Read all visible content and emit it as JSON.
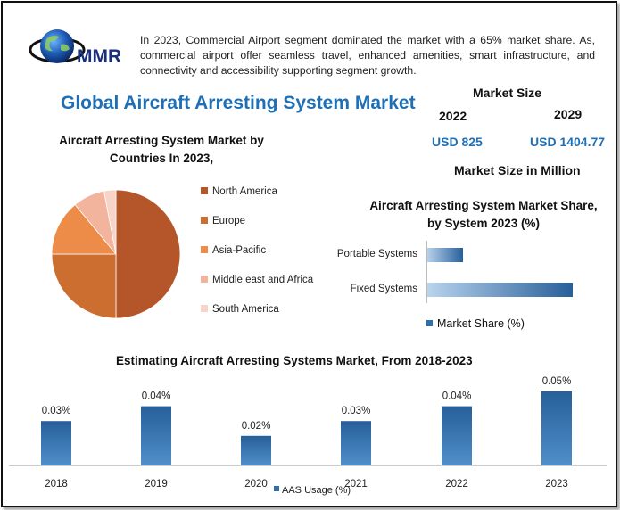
{
  "logo": {
    "text": "MMR",
    "icon": "globe-icon"
  },
  "intro_text": "In 2023, Commercial Airport segment dominated the market with a 65% market share. As, commercial airport offer seamless travel, enhanced amenities, smart infrastructure, and connectivity and accessibility supporting segment growth.",
  "main_title": "Global Aircraft Arresting System Market",
  "market_size": {
    "title": "Market Size",
    "year_a": "2022",
    "year_b": "2029",
    "value_a": "USD 825",
    "value_b": "USD 1404.77",
    "unit_note": "Market Size in Million"
  },
  "colors": {
    "title_blue": "#1f6fb6",
    "bar_blue": "#2f6fab",
    "pie": [
      "#b4562a",
      "#cd6e31",
      "#ed8b48",
      "#f2b49c",
      "#f7d3c8"
    ]
  },
  "chart_data": [
    {
      "type": "pie",
      "title": "Aircraft Arresting System Market by Countries In 2023,",
      "categories": [
        "North America",
        "Europe",
        "Asia-Pacific",
        "Middle east and Africa",
        "South America"
      ],
      "values": [
        50,
        25,
        14,
        8,
        3
      ],
      "legend": "right"
    },
    {
      "type": "bar",
      "orientation": "horizontal",
      "title": "Aircraft Arresting System Market Share, by System 2023 (%)",
      "categories": [
        "Portable Systems",
        "Fixed Systems"
      ],
      "series": [
        {
          "name": "Market Share (%)",
          "values": [
            25,
            100
          ]
        }
      ],
      "xlim": [
        0,
        100
      ],
      "legend": "bottom"
    },
    {
      "type": "bar",
      "title": "Estimating Aircraft Arresting Systems Market, From 2018-2023",
      "categories": [
        "2018",
        "2019",
        "2020",
        "2021",
        "2022",
        "2023"
      ],
      "series": [
        {
          "name": "AAS Usage (%)",
          "values": [
            0.03,
            0.04,
            0.02,
            0.03,
            0.04,
            0.05
          ]
        }
      ],
      "data_labels": [
        "0.03%",
        "0.04%",
        "0.02%",
        "0.03%",
        "0.04%",
        "0.05%"
      ],
      "ylim": [
        0,
        0.05
      ],
      "legend": "bottom"
    }
  ]
}
